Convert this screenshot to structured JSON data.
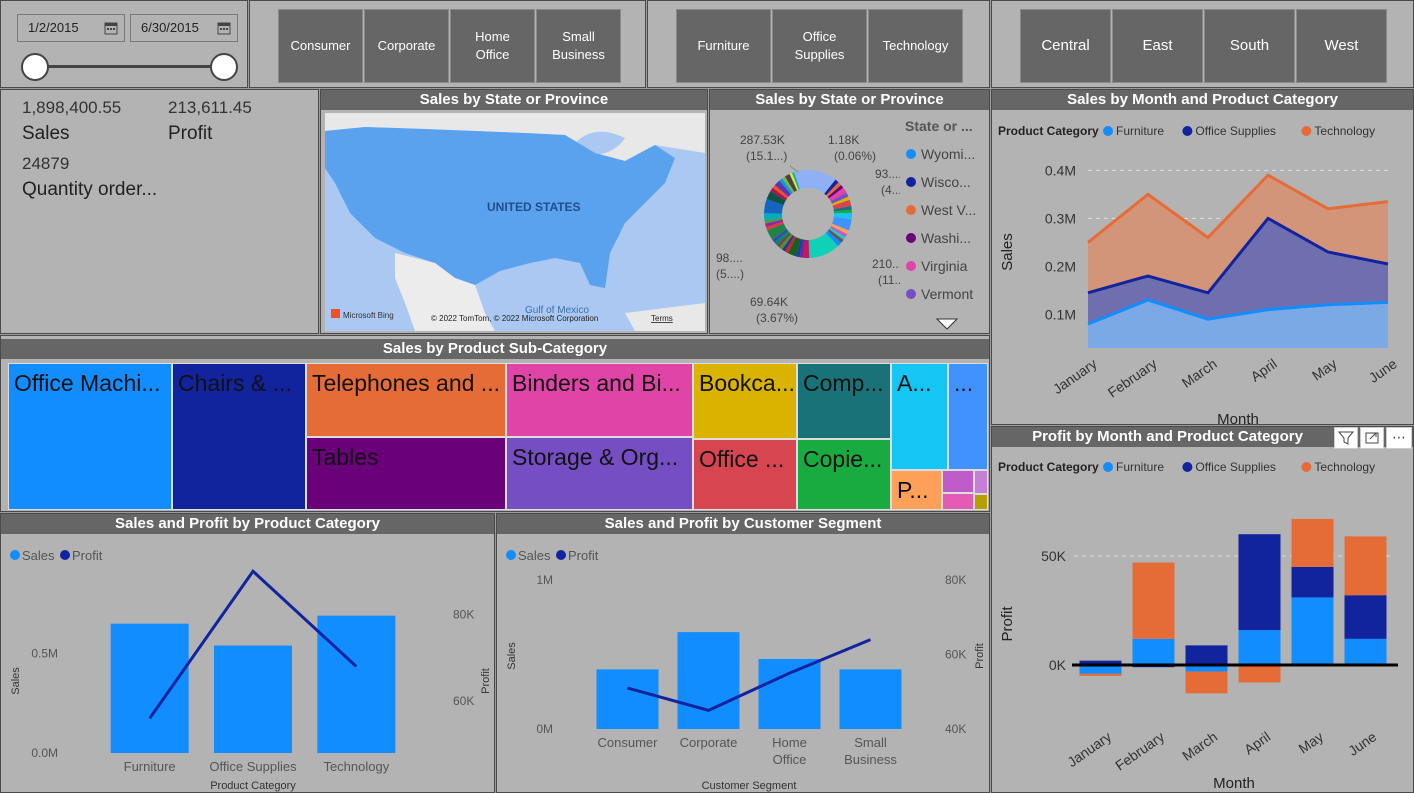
{
  "date_slicer": {
    "start": "1/2/2015",
    "end": "6/30/2015"
  },
  "segments": [
    "Consumer",
    "Corporate",
    "Home Office",
    "Small Business"
  ],
  "categories": [
    "Furniture",
    "Office Supplies",
    "Technology"
  ],
  "regions": [
    "Central",
    "East",
    "South",
    "West"
  ],
  "kpis": {
    "sales_value": "1,898,400.55",
    "sales_label": "Sales",
    "profit_value": "213,611.45",
    "profit_label": "Profit",
    "qty_value": "24879",
    "qty_label": "Quantity order..."
  },
  "map": {
    "title": "Sales by State or Province",
    "country_label": "UNITED STATES",
    "gulf_label": "Gulf of Mexico",
    "bing": "Microsoft Bing",
    "copyright": "© 2022 TomTom, © 2022 Microsoft Corporation",
    "terms": "Terms"
  },
  "donut": {
    "title": "Sales by State or Province",
    "legend_title": "State or ...",
    "legend": [
      {
        "label": "Wyomi...",
        "color": "#118dff"
      },
      {
        "label": "Wisco...",
        "color": "#12239e"
      },
      {
        "label": "West V...",
        "color": "#e66c37"
      },
      {
        "label": "Washi...",
        "color": "#6b007b"
      },
      {
        "label": "Virginia",
        "color": "#e044a7"
      },
      {
        "label": "Vermont",
        "color": "#744ec2"
      }
    ],
    "labels": [
      {
        "l1": "287.53K",
        "l2": "(15.1...)"
      },
      {
        "l1": "1.18K",
        "l2": "(0.06%)"
      },
      {
        "l1": "93....",
        "l2": "(4....)"
      },
      {
        "l1": "98....",
        "l2": "(5....)"
      },
      {
        "l1": "69.64K",
        "l2": "(3.67%)"
      },
      {
        "l1": "210....",
        "l2": "(11...)"
      }
    ]
  },
  "treemap": {
    "title": "Sales by Product Sub-Category",
    "tiles": [
      {
        "label": "Office Machi...",
        "color": "#118dff"
      },
      {
        "label": "Chairs & ...",
        "color": "#12239e"
      },
      {
        "label": "Telephones and ...",
        "color": "#e66c37"
      },
      {
        "label": "Tables",
        "color": "#6b007b"
      },
      {
        "label": "Binders and Bi...",
        "color": "#e044a7"
      },
      {
        "label": "Storage & Org...",
        "color": "#744ec2"
      },
      {
        "label": "Bookca...",
        "color": "#d9b300"
      },
      {
        "label": "Office ...",
        "color": "#d64550"
      },
      {
        "label": "Comp...",
        "color": "#197278"
      },
      {
        "label": "Copie...",
        "color": "#1aab40"
      },
      {
        "label": "A...",
        "color": "#15c6f4"
      },
      {
        "label": "...",
        "color": "#4092ff"
      },
      {
        "label": "P...",
        "color": "#ffa058"
      },
      {
        "label": "",
        "color": "#be5dc9"
      },
      {
        "label": "",
        "color": "#e35bb5"
      },
      {
        "label": "",
        "color": "#c67ed6"
      },
      {
        "label": "",
        "color": "#b5a000"
      }
    ]
  },
  "area_chart": {
    "title": "Sales by Month and Product Category",
    "legend_title": "Product Category",
    "ylabel": "Sales",
    "xlabel": "Month",
    "yticks": [
      "0.1M",
      "0.2M",
      "0.3M",
      "0.4M"
    ]
  },
  "stack_chart": {
    "title": "Profit by Month and Product Category",
    "legend_title": "Product Category",
    "ylabel": "Profit",
    "xlabel": "Month",
    "yticks": [
      "0K",
      "50K"
    ]
  },
  "combo_category": {
    "title": "Sales and Profit by Product Category",
    "xlabel": "Product Category",
    "ylabel": "Sales",
    "y2label": "Profit",
    "yticks": [
      "0.0M",
      "0.5M"
    ],
    "y2ticks": [
      "60K",
      "80K"
    ]
  },
  "combo_segment": {
    "title": "Sales and Profit by Customer Segment",
    "xlabel": "Customer Segment",
    "ylabel": "Sales",
    "y2label": "Profit",
    "yticks": [
      "0M",
      "1M"
    ],
    "y2ticks": [
      "40K",
      "60K",
      "80K"
    ],
    "x_labels": [
      [
        "Consumer"
      ],
      [
        "Corporate"
      ],
      [
        "Home",
        "Office"
      ],
      [
        "Small",
        "Business"
      ]
    ]
  },
  "legend_sales": "Sales",
  "legend_profit": "Profit",
  "colors": {
    "furniture": "#118dff",
    "office_supplies": "#12239e",
    "technology": "#e66c37",
    "sales": "#118dff",
    "profit": "#12239e"
  },
  "chart_data": [
    {
      "type": "area",
      "title": "Sales by Month and Product Category",
      "categories": [
        "January",
        "February",
        "March",
        "April",
        "May",
        "June"
      ],
      "ylabel": "Sales",
      "xlabel": "Month",
      "ylim": [
        0.03,
        0.43
      ],
      "series": [
        {
          "name": "Furniture",
          "values": [
            0.08,
            0.13,
            0.09,
            0.11,
            0.12,
            0.125
          ]
        },
        {
          "name": "Office Supplies",
          "values": [
            0.145,
            0.18,
            0.145,
            0.3,
            0.23,
            0.205
          ]
        },
        {
          "name": "Technology",
          "values": [
            0.25,
            0.35,
            0.26,
            0.39,
            0.32,
            0.335
          ]
        }
      ]
    },
    {
      "type": "bar",
      "title": "Profit by Month and Product Category",
      "categories": [
        "January",
        "February",
        "March",
        "April",
        "May",
        "June"
      ],
      "ylabel": "Profit",
      "xlabel": "Month",
      "ylim": [
        -30,
        70
      ],
      "series": [
        {
          "name": "Furniture",
          "values": [
            -4,
            12,
            -3,
            16,
            31,
            12
          ]
        },
        {
          "name": "Office Supplies",
          "values": [
            2,
            -1,
            9,
            44,
            14,
            20
          ]
        },
        {
          "name": "Technology",
          "values": [
            -1,
            35,
            -10,
            -8,
            22,
            27
          ]
        }
      ]
    },
    {
      "type": "bar",
      "title": "Sales and Profit by Product Category",
      "categories": [
        "Furniture",
        "Office Supplies",
        "Technology"
      ],
      "xlabel": "Product Category",
      "ylabel": "Sales",
      "y2label": "Profit",
      "ylim": [
        0,
        1.0
      ],
      "y2lim": [
        48,
        94
      ],
      "series": [
        {
          "name": "Sales",
          "values": [
            0.65,
            0.54,
            0.69
          ]
        },
        {
          "name": "Profit",
          "values": [
            56,
            90,
            68
          ]
        }
      ]
    },
    {
      "type": "bar",
      "title": "Sales and Profit by Customer Segment",
      "categories": [
        "Consumer",
        "Corporate",
        "Home Office",
        "Small Business"
      ],
      "xlabel": "Customer Segment",
      "ylabel": "Sales",
      "y2label": "Profit",
      "ylim": [
        0,
        1.0
      ],
      "y2lim": [
        40,
        80
      ],
      "series": [
        {
          "name": "Sales",
          "values": [
            0.4,
            0.65,
            0.47,
            0.4
          ]
        },
        {
          "name": "Profit",
          "values": [
            51,
            45,
            55,
            64
          ]
        }
      ]
    }
  ]
}
